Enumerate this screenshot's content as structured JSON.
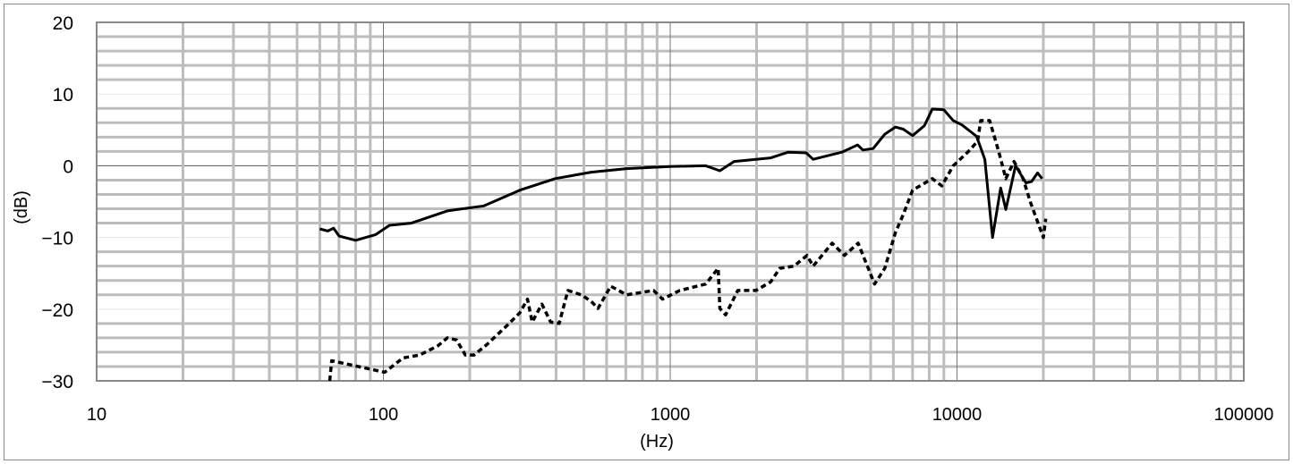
{
  "chart_data": {
    "type": "line",
    "xlabel": "(Hz)",
    "ylabel": "(dB)",
    "xscale": "log",
    "xlim": [
      10,
      100000
    ],
    "ylim": [
      -30,
      20
    ],
    "x_ticks": [
      "10",
      "100",
      "1000",
      "10000",
      "100000"
    ],
    "y_ticks": [
      "20",
      "10",
      "0",
      "-10",
      "-20",
      "-30"
    ],
    "grid": true,
    "legend": "none",
    "series": [
      {
        "style": "solid",
        "color": "#000000",
        "x": [
          60,
          64,
          67,
          70,
          80,
          94,
          105,
          125,
          167,
          224,
          299,
          397,
          530,
          705,
          1000,
          1330,
          1490,
          1670,
          2240,
          2580,
          2980,
          3150,
          3970,
          4500,
          4700,
          5100,
          5600,
          6100,
          6500,
          7000,
          7700,
          8200,
          9000,
          9700,
          10400,
          11700,
          12500,
          13300,
          14200,
          14800,
          16000,
          17400,
          18200,
          19100,
          19800
        ],
        "y": [
          -8.8,
          -9.1,
          -8.7,
          -9.8,
          -10.4,
          -9.6,
          -8.3,
          -8,
          -6.3,
          -5.6,
          -3.4,
          -1.8,
          -0.9,
          -0.4,
          -0.1,
          0,
          -0.7,
          0.6,
          1.1,
          1.9,
          1.8,
          0.9,
          1.9,
          2.9,
          2.2,
          2.4,
          4.4,
          5.4,
          5.1,
          4.2,
          5.6,
          7.9,
          7.8,
          6.3,
          5.7,
          4.1,
          0.9,
          -10,
          -3.1,
          -6.1,
          0,
          -2.4,
          -2.2,
          -1,
          -1.8
        ]
      },
      {
        "style": "dashed",
        "color": "#000000",
        "x": [
          65,
          66,
          101,
          117,
          134,
          155,
          167,
          180,
          193,
          207,
          230,
          268,
          299,
          318,
          330,
          357,
          383,
          410,
          440,
          490,
          530,
          560,
          620,
          705,
          875,
          940,
          1080,
          1330,
          1470,
          1490,
          1560,
          1720,
          1990,
          2240,
          2410,
          2700,
          3000,
          3150,
          3670,
          4050,
          4520,
          5160,
          5600,
          6100,
          6500,
          7000,
          8200,
          8850,
          9700,
          10900,
          11800,
          12100,
          13000,
          14000,
          14800,
          15800,
          17000,
          18000,
          20000,
          20400
        ],
        "y": [
          -30,
          -27.2,
          -28.8,
          -26.8,
          -26.4,
          -25.1,
          -24,
          -24.3,
          -26.4,
          -26.4,
          -24.9,
          -22.4,
          -20.5,
          -18.6,
          -21.8,
          -19.3,
          -21.8,
          -22,
          -17.4,
          -18,
          -18.9,
          -19.9,
          -16.8,
          -18,
          -17.4,
          -18.6,
          -17.4,
          -16.5,
          -14.3,
          -19.9,
          -20.8,
          -17.4,
          -17.4,
          -16.2,
          -14.3,
          -14,
          -12.5,
          -14,
          -10.8,
          -12.5,
          -10.8,
          -16.5,
          -14.3,
          -9.3,
          -6.8,
          -3.4,
          -1.8,
          -2.8,
          0,
          1.9,
          3.4,
          6.3,
          6.3,
          1.9,
          -1.8,
          0.6,
          -1.8,
          -5,
          -10,
          -7.4
        ]
      }
    ]
  }
}
